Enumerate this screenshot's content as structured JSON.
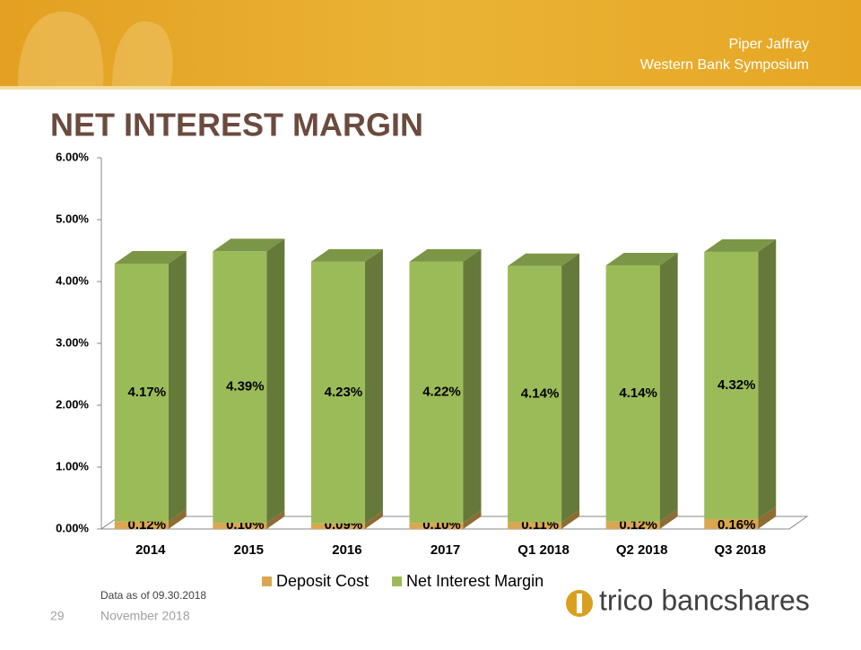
{
  "slide": {
    "header_lines": [
      "Piper Jaffray",
      "Western Bank Symposium"
    ],
    "title": "NET INTEREST MARGIN",
    "footnote": "Data as of 09.30.2018",
    "page_number": "29",
    "date": "November 2018",
    "logo": "trico bancshares"
  },
  "chart_data": {
    "type": "bar",
    "stacked": true,
    "categories": [
      "2014",
      "2015",
      "2016",
      "2017",
      "Q1 2018",
      "Q2 2018",
      "Q3 2018"
    ],
    "series": [
      {
        "name": "Deposit Cost",
        "color": "#d9a750",
        "values": [
          0.12,
          0.1,
          0.09,
          0.1,
          0.11,
          0.12,
          0.16
        ],
        "value_labels": [
          "0.12%",
          "0.10%",
          "0.09%",
          "0.10%",
          "0.11%",
          "0.12%",
          "0.16%"
        ]
      },
      {
        "name": "Net Interest Margin",
        "color": "#9bbb59",
        "values": [
          4.17,
          4.39,
          4.23,
          4.22,
          4.14,
          4.14,
          4.32
        ],
        "value_labels": [
          "4.17%",
          "4.39%",
          "4.23%",
          "4.22%",
          "4.14%",
          "4.14%",
          "4.32%"
        ]
      }
    ],
    "ylim": [
      0,
      6
    ],
    "yticks": [
      {
        "value": 0,
        "label": "0.00%"
      },
      {
        "value": 1,
        "label": "1.00%"
      },
      {
        "value": 2,
        "label": "2.00%"
      },
      {
        "value": 3,
        "label": "3.00%"
      },
      {
        "value": 4,
        "label": "4.00%"
      },
      {
        "value": 5,
        "label": "5.00%"
      },
      {
        "value": 6,
        "label": "6.00%"
      }
    ],
    "grid": false,
    "legend": "bottom"
  }
}
